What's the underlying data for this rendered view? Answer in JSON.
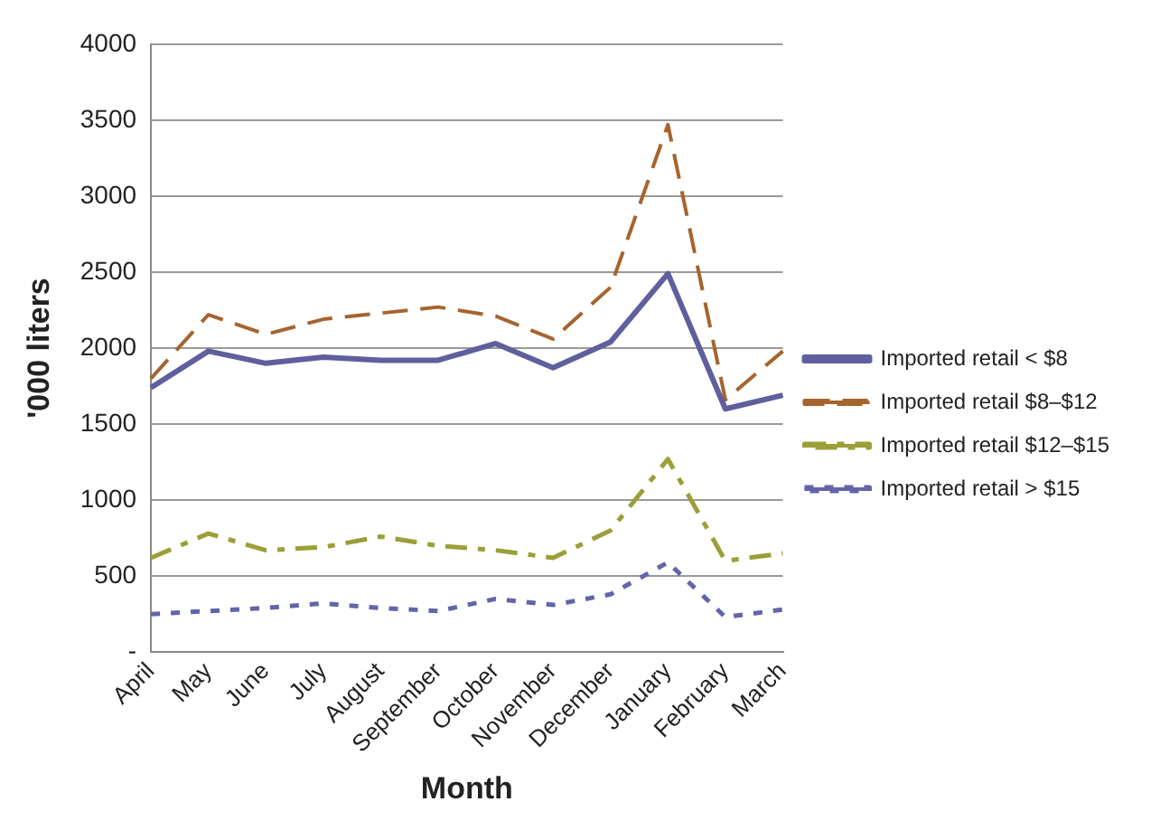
{
  "chart_data": {
    "type": "line",
    "xlabel": "Month",
    "ylabel": "'000 liters",
    "categories": [
      "April",
      "May",
      "June",
      "July",
      "August",
      "September",
      "October",
      "November",
      "December",
      "January",
      "February",
      "March"
    ],
    "series": [
      {
        "name": "Imported retail < $8",
        "color": "#5f5f9e",
        "line_style": "solid",
        "values": [
          1740,
          1980,
          1900,
          1940,
          1920,
          1920,
          2030,
          1870,
          2040,
          2490,
          1600,
          1690
        ]
      },
      {
        "name": "Imported retail $8–$12",
        "color": "#a5642e",
        "line_style": "dashed",
        "values": [
          1800,
          2220,
          2090,
          2190,
          2230,
          2270,
          2210,
          2060,
          2400,
          3470,
          1660,
          1980
        ]
      },
      {
        "name": "Imported retail $12–$15",
        "color": "#9aa037",
        "line_style": "dashdot",
        "values": [
          620,
          780,
          670,
          690,
          760,
          700,
          670,
          620,
          800,
          1270,
          600,
          650
        ]
      },
      {
        "name": "Imported retail > $15",
        "color": "#6464aa",
        "line_style": "dotted",
        "values": [
          250,
          270,
          290,
          320,
          290,
          270,
          350,
          310,
          380,
          590,
          230,
          280
        ]
      }
    ],
    "ylim": [
      0,
      4000
    ],
    "yticks": [
      {
        "value": 0,
        "label": "-"
      },
      500,
      1000,
      1500,
      2000,
      2500,
      3000,
      3500,
      4000
    ],
    "grid": "y",
    "legend": "right",
    "marker": "none"
  }
}
